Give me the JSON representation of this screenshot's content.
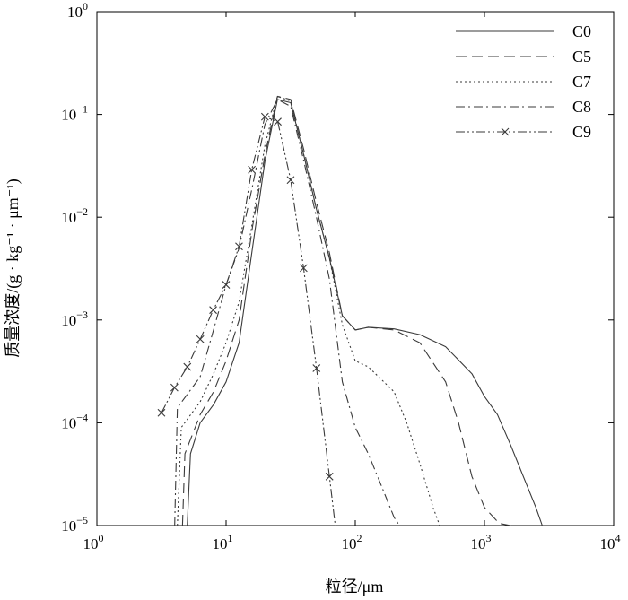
{
  "chart_data": {
    "type": "line",
    "title": "",
    "xlabel": "粒径/μm",
    "ylabel": "质量浓度/(g · kg⁻¹ · μm⁻¹)",
    "xscale": "log",
    "yscale": "log",
    "xlim": [
      1,
      10000
    ],
    "ylim": [
      1e-05,
      1
    ],
    "x_ticks": [
      {
        "value": 1,
        "base": "10",
        "exp": "0"
      },
      {
        "value": 10,
        "base": "10",
        "exp": "1"
      },
      {
        "value": 100,
        "base": "10",
        "exp": "2"
      },
      {
        "value": 1000,
        "base": "10",
        "exp": "3"
      },
      {
        "value": 10000,
        "base": "10",
        "exp": "4"
      }
    ],
    "y_ticks": [
      {
        "value": 1,
        "base": "10",
        "exp": "0"
      },
      {
        "value": 0.1,
        "base": "10",
        "exp": "−1"
      },
      {
        "value": 0.01,
        "base": "10",
        "exp": "−2"
      },
      {
        "value": 0.001,
        "base": "10",
        "exp": "−3"
      },
      {
        "value": 0.0001,
        "base": "10",
        "exp": "−4"
      },
      {
        "value": 1e-05,
        "base": "10",
        "exp": "−5"
      }
    ],
    "grid": false,
    "legend_position": "top-right",
    "series": [
      {
        "name": "C0",
        "dash": "solid",
        "marker": "none",
        "points": [
          [
            5.0,
            1e-05
          ],
          [
            5.3,
            5e-05
          ],
          [
            6.3,
            0.0001
          ],
          [
            8.0,
            0.00015
          ],
          [
            10.0,
            0.00025
          ],
          [
            12.6,
            0.0006
          ],
          [
            16.0,
            0.005
          ],
          [
            20.0,
            0.035
          ],
          [
            25.0,
            0.14
          ],
          [
            31.6,
            0.13
          ],
          [
            40.0,
            0.04
          ],
          [
            50.0,
            0.012
          ],
          [
            63.1,
            0.004
          ],
          [
            79.4,
            0.0011
          ],
          [
            100,
            0.0008
          ],
          [
            126,
            0.00085
          ],
          [
            200,
            0.00082
          ],
          [
            316,
            0.00072
          ],
          [
            500,
            0.00055
          ],
          [
            800,
            0.0003
          ],
          [
            1000,
            0.00018
          ],
          [
            1260,
            0.00012
          ],
          [
            1600,
            6e-05
          ],
          [
            2000,
            3e-05
          ],
          [
            2500,
            1.5e-05
          ],
          [
            2800,
            1e-05
          ]
        ]
      },
      {
        "name": "C5",
        "dash": "long-dash",
        "marker": "none",
        "points": [
          [
            4.6,
            1e-05
          ],
          [
            4.8,
            5e-05
          ],
          [
            6.3,
            0.00012
          ],
          [
            8.0,
            0.0002
          ],
          [
            10.0,
            0.0004
          ],
          [
            12.6,
            0.001
          ],
          [
            16.0,
            0.008
          ],
          [
            20.0,
            0.04
          ],
          [
            25.0,
            0.15
          ],
          [
            31.6,
            0.14
          ],
          [
            40.0,
            0.045
          ],
          [
            50.0,
            0.014
          ],
          [
            63.1,
            0.0045
          ],
          [
            79.4,
            0.0011
          ],
          [
            100,
            0.0008
          ],
          [
            126,
            0.00085
          ],
          [
            200,
            0.0008
          ],
          [
            316,
            0.0006
          ],
          [
            500,
            0.00025
          ],
          [
            630,
            0.0001
          ],
          [
            800,
            3e-05
          ],
          [
            1000,
            1.5e-05
          ],
          [
            1300,
            1.05e-05
          ],
          [
            1600,
            1e-05
          ]
        ]
      },
      {
        "name": "C7",
        "dash": "dotted",
        "marker": "none",
        "points": [
          [
            4.2,
            1e-05
          ],
          [
            4.5,
            9e-05
          ],
          [
            6.3,
            0.00016
          ],
          [
            8.0,
            0.0003
          ],
          [
            10.0,
            0.0006
          ],
          [
            12.6,
            0.0015
          ],
          [
            16.0,
            0.009
          ],
          [
            20.0,
            0.05
          ],
          [
            25.0,
            0.15
          ],
          [
            31.6,
            0.135
          ],
          [
            40.0,
            0.04
          ],
          [
            50.0,
            0.012
          ],
          [
            63.1,
            0.004
          ],
          [
            79.4,
            0.0009
          ],
          [
            100,
            0.0004
          ],
          [
            126,
            0.00035
          ],
          [
            200,
            0.0002
          ],
          [
            250,
            0.0001
          ],
          [
            316,
            4e-05
          ],
          [
            400,
            1.5e-05
          ],
          [
            450,
            1e-05
          ]
        ]
      },
      {
        "name": "C8",
        "dash": "dash-dot",
        "marker": "none",
        "points": [
          [
            4.0,
            1e-05
          ],
          [
            4.2,
            0.00014
          ],
          [
            6.3,
            0.00028
          ],
          [
            8.0,
            0.0008
          ],
          [
            10.0,
            0.0022
          ],
          [
            12.6,
            0.005
          ],
          [
            16.0,
            0.02
          ],
          [
            20.0,
            0.08
          ],
          [
            25.0,
            0.14
          ],
          [
            31.6,
            0.12
          ],
          [
            40.0,
            0.035
          ],
          [
            50.0,
            0.01
          ],
          [
            63.1,
            0.0025
          ],
          [
            79.4,
            0.00025
          ],
          [
            100,
            9e-05
          ],
          [
            126,
            5e-05
          ],
          [
            158,
            2.5e-05
          ],
          [
            200,
            1.2e-05
          ],
          [
            220,
            1e-05
          ]
        ]
      },
      {
        "name": "C9",
        "dash": "dash-dot-dot",
        "marker": "x",
        "points": [
          [
            3.16,
            0.000125
          ],
          [
            3.98,
            0.00022
          ],
          [
            5.01,
            0.00035
          ],
          [
            6.31,
            0.00065
          ],
          [
            7.94,
            0.00125
          ],
          [
            10.0,
            0.0022
          ],
          [
            12.6,
            0.0052
          ],
          [
            15.8,
            0.029
          ],
          [
            20.0,
            0.095
          ],
          [
            25.1,
            0.085
          ],
          [
            31.6,
            0.023
          ],
          [
            39.8,
            0.0032
          ],
          [
            50.1,
            0.00034
          ],
          [
            63.1,
            3e-05
          ],
          [
            70.0,
            1e-05
          ]
        ],
        "marker_points": [
          [
            3.16,
            0.000125
          ],
          [
            3.98,
            0.00022
          ],
          [
            5.01,
            0.00035
          ],
          [
            6.31,
            0.00065
          ],
          [
            7.94,
            0.00125
          ],
          [
            10.0,
            0.0022
          ],
          [
            12.6,
            0.0052
          ],
          [
            15.8,
            0.029
          ],
          [
            20.0,
            0.095
          ],
          [
            25.1,
            0.085
          ],
          [
            31.6,
            0.023
          ],
          [
            39.8,
            0.0032
          ],
          [
            50.1,
            0.00034
          ],
          [
            63.1,
            3e-05
          ]
        ]
      }
    ]
  }
}
